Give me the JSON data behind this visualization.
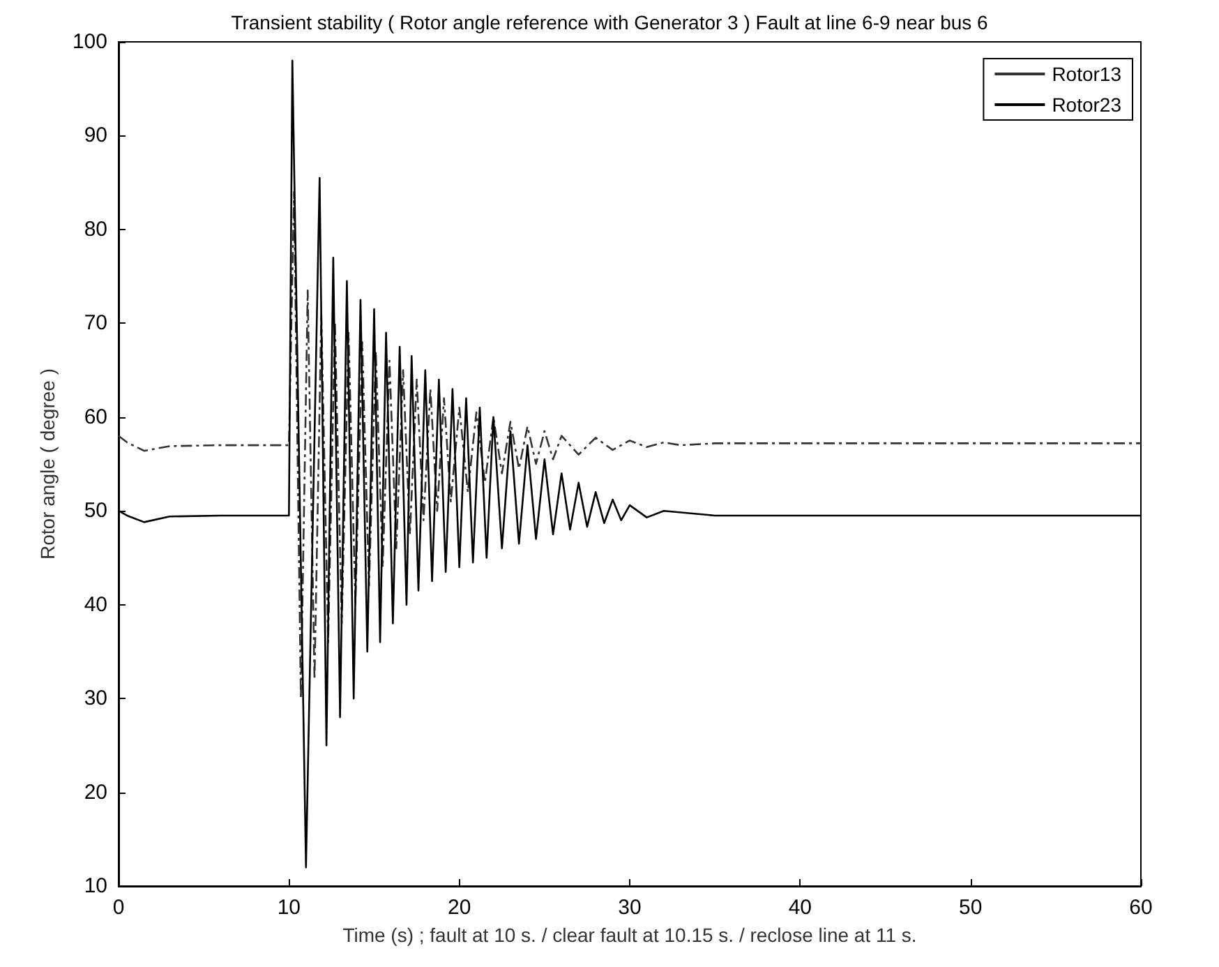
{
  "chart_data": {
    "type": "line",
    "title": "Transient stability ( Rotor angle reference with Generator 3 ) Fault at line 6-9 near bus 6",
    "xlabel": "Time (s) ; fault at 10 s. / clear fault at 10.15 s. / reclose line at 11 s.",
    "ylabel": "Rotor angle ( degree )",
    "xlim": [
      0,
      60
    ],
    "xticks": [
      0,
      10,
      20,
      30,
      40,
      50,
      60
    ],
    "ylim": [
      10,
      100
    ],
    "yticks": [
      10,
      20,
      30,
      40,
      50,
      60,
      70,
      80,
      90,
      100
    ],
    "grid": false,
    "legend": "top right",
    "marker": "none",
    "series": [
      {
        "name": "Rotor13",
        "color": "#333333",
        "line_style": "dashed",
        "x": [
          0,
          0.5,
          1.5,
          3,
          6,
          10,
          10.3,
          10.7,
          11.1,
          11.5,
          11.9,
          12.3,
          12.7,
          13.1,
          13.5,
          13.9,
          14.3,
          14.7,
          15.1,
          15.5,
          15.9,
          16.3,
          16.7,
          17.1,
          17.5,
          17.9,
          18.3,
          18.7,
          19.1,
          19.5,
          20,
          20.5,
          21,
          21.5,
          22,
          22.5,
          23,
          23.5,
          24,
          24.5,
          25,
          25.5,
          26,
          27,
          28,
          29,
          30,
          31,
          32,
          33,
          35,
          40,
          50,
          60
        ],
        "values": [
          58,
          57.3,
          56.4,
          56.9,
          57,
          57,
          84,
          30,
          73.5,
          32,
          71,
          36,
          70,
          38,
          69,
          40,
          68,
          42,
          67,
          44,
          66,
          46,
          65,
          47.5,
          64,
          49,
          63,
          50,
          62,
          51,
          61,
          52,
          60.5,
          53,
          60,
          54,
          59.5,
          54.5,
          59,
          55,
          58.5,
          55.5,
          58,
          56,
          57.8,
          56.5,
          57.5,
          56.8,
          57.3,
          57,
          57.2,
          57.2,
          57.2,
          57.2
        ]
      },
      {
        "name": "Rotor23",
        "color": "#000000",
        "line_style": "solid",
        "x": [
          0,
          0.5,
          1.5,
          3,
          6,
          10,
          10.2,
          11,
          11.8,
          12.2,
          12.6,
          13,
          13.4,
          13.8,
          14.2,
          14.6,
          15,
          15.35,
          15.7,
          16.1,
          16.5,
          16.9,
          17.2,
          17.6,
          18,
          18.4,
          18.8,
          19.2,
          19.6,
          20,
          20.4,
          20.8,
          21.2,
          21.6,
          22,
          22.5,
          23,
          23.5,
          24,
          24.5,
          25,
          25.5,
          26,
          26.5,
          27,
          27.5,
          28,
          28.5,
          29,
          29.5,
          30,
          31,
          32,
          35,
          40,
          50,
          60
        ],
        "values": [
          50,
          49.5,
          48.8,
          49.4,
          49.5,
          49.5,
          98,
          12,
          85.5,
          25,
          77,
          28,
          74.5,
          30,
          72.5,
          35,
          71.5,
          36,
          69,
          38,
          67.5,
          40,
          66.5,
          41.5,
          65,
          42.5,
          64,
          43.5,
          63,
          44,
          62,
          44.5,
          61,
          45,
          60,
          46,
          58.5,
          46.5,
          57,
          47,
          55.5,
          47.5,
          54,
          48,
          53,
          48.3,
          52,
          48.7,
          51.2,
          49,
          50.6,
          49.3,
          50,
          49.5,
          49.5,
          49.5,
          49.5
        ]
      }
    ]
  }
}
